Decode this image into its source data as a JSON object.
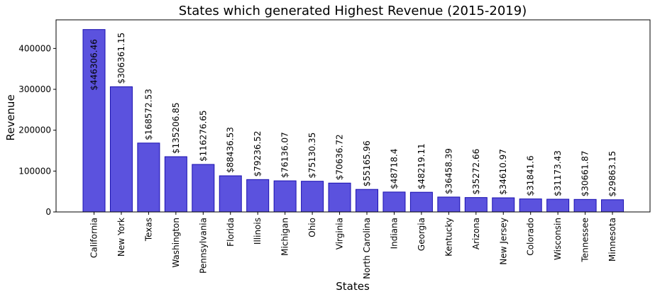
{
  "chart_data": {
    "type": "bar",
    "title": "States which generated Highest Revenue (2015-2019)",
    "xlabel": "States",
    "ylabel": "Revenue",
    "ylim": [
      0,
      470000
    ],
    "yticks": [
      0,
      100000,
      200000,
      300000,
      400000
    ],
    "grid": false,
    "bar_color": "#5b52de",
    "bar_edge_color": "#1a10b0",
    "categories": [
      "California",
      "New York",
      "Texas",
      "Washington",
      "Pennsylvania",
      "Florida",
      "Illinois",
      "Michigan",
      "Ohio",
      "Virginia",
      "North Carolina",
      "Indiana",
      "Georgia",
      "Kentucky",
      "Arizona",
      "New Jersey",
      "Colorado",
      "Wisconsin",
      "Tennessee",
      "Minnesota"
    ],
    "values": [
      446306.46,
      306361.15,
      168572.53,
      135206.85,
      116276.65,
      88436.53,
      79236.52,
      76136.07,
      75130.35,
      70636.72,
      55165.96,
      48718.4,
      48219.11,
      36458.39,
      35272.66,
      34610.97,
      31841.6,
      31173.43,
      30661.87,
      29863.15
    ],
    "data_labels": [
      "$446306.46",
      "$306361.15",
      "$168572.53",
      "$135206.85",
      "$116276.65",
      "$88436.53",
      "$79236.52",
      "$76136.07",
      "$75130.35",
      "$70636.72",
      "$55165.96",
      "$48718.4",
      "$48219.11",
      "$36458.39",
      "$35272.66",
      "$34610.97",
      "$31841.6",
      "$31173.43",
      "$30661.87",
      "$29863.15"
    ]
  }
}
